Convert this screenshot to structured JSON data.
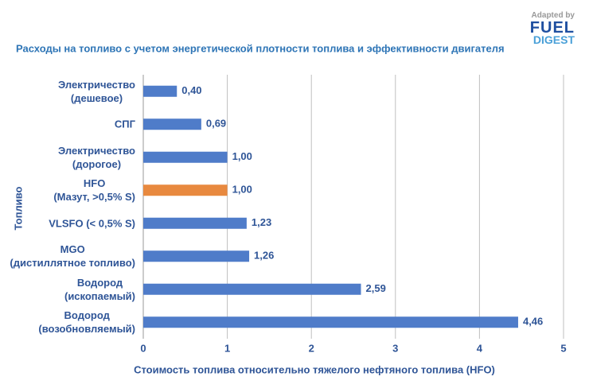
{
  "chart_data": {
    "type": "hbar",
    "title": "Расходы на топливо с учетом энергетической плотности топлива и эффективности двигателя",
    "xlabel": "Стоимость топлива относительно тяжелого нефтяного топлива (HFO)",
    "ylabel": "Топливо",
    "categories": [
      "Электричество\n(дешевое)",
      "СПГ",
      "Электричество\n(дорогое)",
      "HFO\n(Мазут, >0,5% S)",
      "VLSFO (< 0,5% S)",
      "MGO\n(дистиллятное топливо)",
      "Водород\n(ископаемый)",
      "Водород\n(возобновляемый)"
    ],
    "values": [
      0.4,
      0.69,
      1.0,
      1.0,
      1.23,
      1.26,
      2.59,
      4.46
    ],
    "value_labels": [
      "0,40",
      "0,69",
      "1,00",
      "1,00",
      "1,23",
      "1,26",
      "2,59",
      "4,46"
    ],
    "colors": [
      "#4f7cc9",
      "#4f7cc9",
      "#4f7cc9",
      "#e8893f",
      "#4f7cc9",
      "#4f7cc9",
      "#4f7cc9",
      "#4f7cc9"
    ],
    "xlim": [
      0,
      5
    ],
    "xticks": [
      0,
      1,
      2,
      3,
      4,
      5
    ],
    "grid": true
  },
  "logo": {
    "line1": "Adapted by",
    "line2": "FUEL",
    "line3": "DIGEST"
  }
}
